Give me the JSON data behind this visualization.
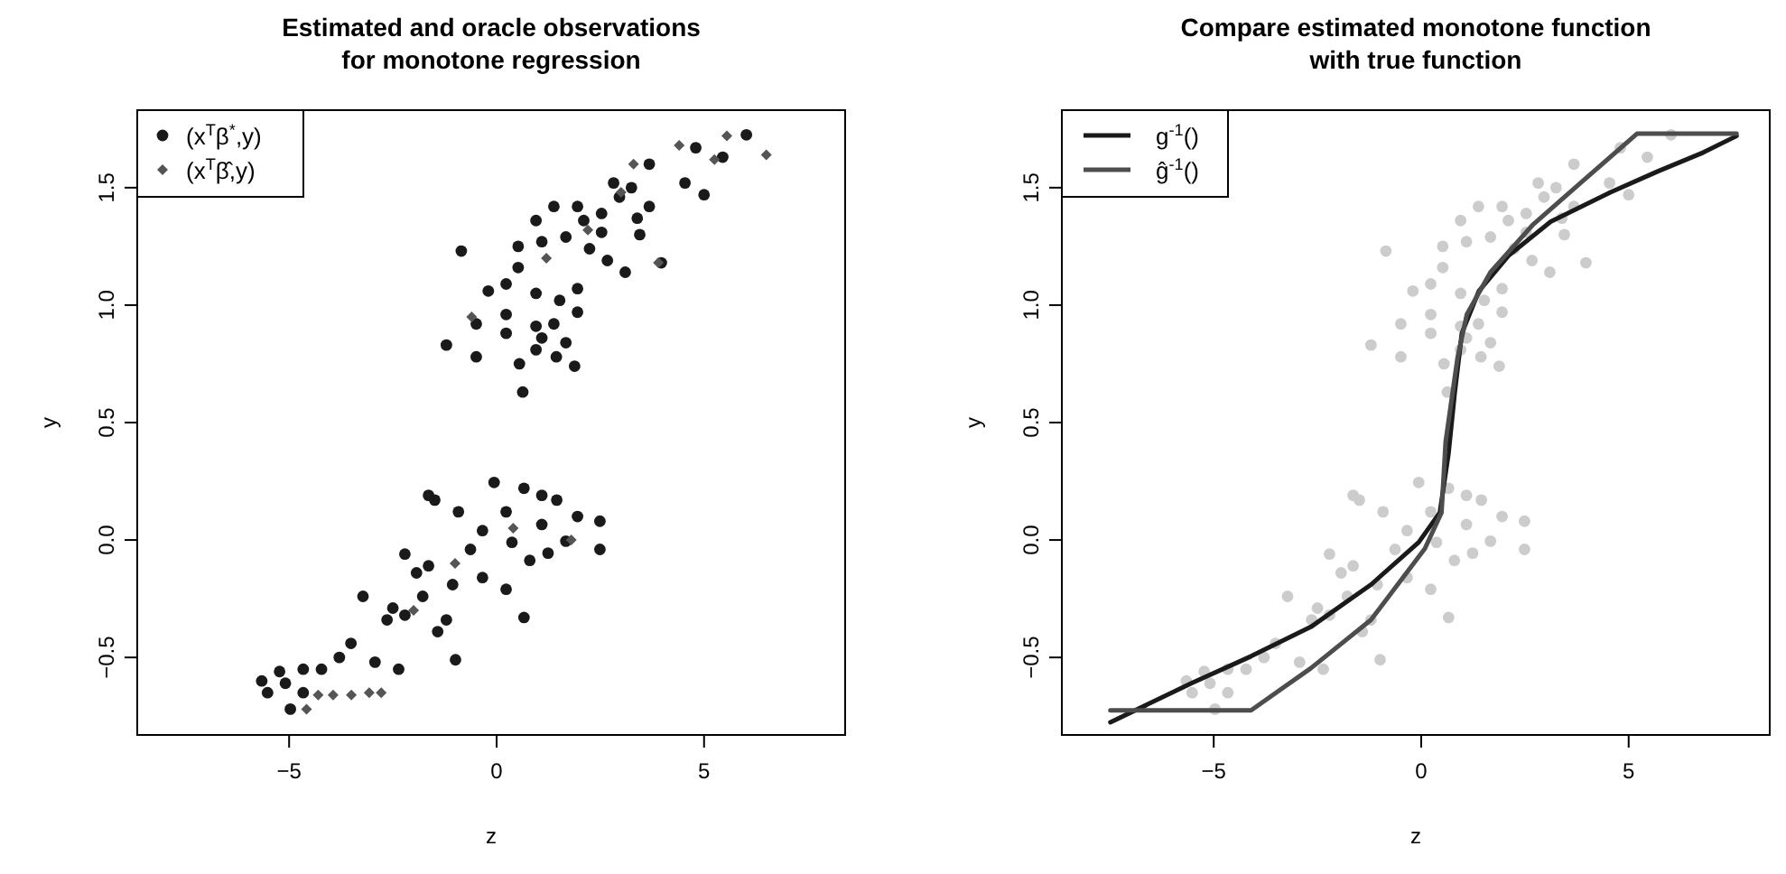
{
  "chart_data": [
    {
      "type": "scatter",
      "title": "Estimated and oracle observations\nfor monotone regression",
      "xlabel": "z",
      "ylabel": "y",
      "xlim": [
        -8.66,
        8.4
      ],
      "ylim": [
        -0.83,
        1.83
      ],
      "xticks": [
        {
          "value": -5,
          "label": "−5"
        },
        {
          "value": 0,
          "label": "0"
        },
        {
          "value": 5,
          "label": "5"
        }
      ],
      "yticks": [
        {
          "value": -0.5,
          "label": "−0.5"
        },
        {
          "value": 0,
          "label": "0.0"
        },
        {
          "value": 0.5,
          "label": "0.5"
        },
        {
          "value": 1,
          "label": "1.0"
        },
        {
          "value": 1.5,
          "label": "1.5"
        }
      ],
      "legend": "top left",
      "grid": false,
      "series": [
        {
          "name": "(x$^{T}$β$^{*}$,y)",
          "color": "#1a1a1a",
          "marker": "circle",
          "x": [
            6.02,
            4.8,
            5.45,
            3.68,
            4.54,
            5.0,
            2.82,
            3.25,
            3.68,
            3.39,
            2.53,
            2.1,
            1.95,
            1.38,
            0.95,
            0.52,
            1.09,
            1.67,
            2.24,
            2.67,
            3.1,
            3.45,
            3.97,
            -0.85,
            -0.2,
            0.52,
            0.95,
            1.52,
            1.95,
            0.23,
            -0.49,
            -1.21,
            -0.49,
            0.23,
            0.95,
            1.38,
            1.09,
            1.67,
            0.95,
            1.44,
            0.55,
            1.88,
            0.63,
            0.23,
            1.95,
            2.96,
            2.53,
            -0.06,
            0.66,
            1.09,
            1.45,
            1.95,
            2.49,
            2.49,
            1.67,
            1.24,
            0.8,
            0.23,
            -0.34,
            -0.92,
            -1.49,
            -1.64,
            -2.21,
            -1.64,
            -1.06,
            -0.34,
            0.23,
            0.66,
            -0.99,
            -1.78,
            -2.21,
            -2.64,
            -3.22,
            -3.79,
            -3.51,
            -2.93,
            -2.36,
            -4.22,
            -4.66,
            -5.23,
            -5.66,
            -5.52,
            -4.97,
            -5.09,
            -4.66,
            -1.42,
            -0.63,
            0.37,
            1.09,
            -1.21,
            -1.93,
            -2.5
          ],
          "values": [
            1.725,
            1.67,
            1.63,
            1.6,
            1.52,
            1.47,
            1.52,
            1.5,
            1.42,
            1.37,
            1.39,
            1.36,
            1.42,
            1.42,
            1.36,
            1.25,
            1.27,
            1.29,
            1.24,
            1.19,
            1.14,
            1.3,
            1.18,
            1.23,
            1.06,
            1.16,
            1.05,
            1.02,
            0.97,
            0.96,
            0.92,
            0.83,
            0.78,
            0.88,
            0.91,
            0.92,
            0.86,
            0.84,
            0.81,
            0.78,
            0.75,
            0.74,
            0.63,
            1.09,
            1.07,
            1.46,
            1.31,
            0.245,
            0.22,
            0.19,
            0.17,
            0.1,
            0.08,
            -0.04,
            -0.005,
            -0.056,
            -0.087,
            0.12,
            0.04,
            0.12,
            0.17,
            0.19,
            -0.06,
            -0.11,
            -0.19,
            -0.16,
            -0.21,
            -0.33,
            -0.51,
            -0.24,
            -0.32,
            -0.34,
            -0.24,
            -0.5,
            -0.44,
            -0.52,
            -0.55,
            -0.55,
            -0.55,
            -0.56,
            -0.6,
            -0.65,
            -0.72,
            -0.61,
            -0.65,
            -0.39,
            -0.04,
            -0.01,
            0.066,
            -0.34,
            -0.14,
            -0.29
          ]
        },
        {
          "name": "(x$^{T}$β̂,y)",
          "color": "#555555",
          "marker": "diamond",
          "x": [
            4.4,
            5.55,
            6.5,
            3.3,
            3.9,
            5.25,
            -3.07,
            -2.78,
            -3.94,
            -4.58,
            -4.3,
            -3.5,
            -2.0,
            -1.0,
            0.4,
            1.2,
            2.2,
            3.0,
            -0.6,
            1.8
          ],
          "values": [
            1.68,
            1.72,
            1.64,
            1.6,
            1.18,
            1.62,
            -0.65,
            -0.65,
            -0.66,
            -0.72,
            -0.66,
            -0.66,
            -0.3,
            -0.1,
            0.05,
            1.2,
            1.32,
            1.48,
            0.95,
            0.0
          ]
        }
      ]
    },
    {
      "type": "scatter",
      "title": "Compare estimated monotone function\nwith true function",
      "xlabel": "z",
      "ylabel": "y",
      "xlim": [
        -8.66,
        8.4
      ],
      "ylim": [
        -0.83,
        1.83
      ],
      "xticks": [
        {
          "value": -5,
          "label": "−5"
        },
        {
          "value": 0,
          "label": "0"
        },
        {
          "value": 5,
          "label": "5"
        }
      ],
      "yticks": [
        {
          "value": -0.5,
          "label": "−0.5"
        },
        {
          "value": 0,
          "label": "0.0"
        },
        {
          "value": 0.5,
          "label": "0.5"
        },
        {
          "value": 1,
          "label": "1.0"
        },
        {
          "value": 1.5,
          "label": "1.5"
        }
      ],
      "legend": "top left",
      "grid": false,
      "series": [
        {
          "color": "#cccccc",
          "marker": "circle",
          "x": [
            6.02,
            4.8,
            5.45,
            3.68,
            4.54,
            5.0,
            2.82,
            3.25,
            3.68,
            3.39,
            2.53,
            2.1,
            1.95,
            1.38,
            0.95,
            0.52,
            1.09,
            1.67,
            2.24,
            2.67,
            3.1,
            3.45,
            3.97,
            -0.85,
            -0.2,
            0.52,
            0.95,
            1.52,
            1.95,
            0.23,
            -0.49,
            -1.21,
            -0.49,
            0.23,
            0.95,
            1.38,
            1.09,
            1.67,
            0.95,
            1.44,
            0.55,
            1.88,
            0.63,
            0.23,
            1.95,
            2.96,
            2.53,
            -0.06,
            0.66,
            1.09,
            1.45,
            1.95,
            2.49,
            2.49,
            1.67,
            1.24,
            0.8,
            0.23,
            -0.34,
            -0.92,
            -1.49,
            -1.64,
            -2.21,
            -1.64,
            -1.06,
            -0.34,
            0.23,
            0.66,
            -0.99,
            -1.78,
            -2.21,
            -2.64,
            -3.22,
            -3.79,
            -3.51,
            -2.93,
            -2.36,
            -4.22,
            -4.66,
            -5.23,
            -5.66,
            -5.52,
            -4.97,
            -5.09,
            -4.66,
            -1.42,
            -0.63,
            0.37,
            1.09,
            -1.21,
            -1.93,
            -2.5
          ],
          "values": [
            1.725,
            1.67,
            1.63,
            1.6,
            1.52,
            1.47,
            1.52,
            1.5,
            1.42,
            1.37,
            1.39,
            1.36,
            1.42,
            1.42,
            1.36,
            1.25,
            1.27,
            1.29,
            1.24,
            1.19,
            1.14,
            1.3,
            1.18,
            1.23,
            1.06,
            1.16,
            1.05,
            1.02,
            0.97,
            0.96,
            0.92,
            0.83,
            0.78,
            0.88,
            0.91,
            0.92,
            0.86,
            0.84,
            0.81,
            0.78,
            0.75,
            0.74,
            0.63,
            1.09,
            1.07,
            1.46,
            1.31,
            0.245,
            0.22,
            0.19,
            0.17,
            0.1,
            0.08,
            -0.04,
            -0.005,
            -0.056,
            -0.087,
            0.12,
            0.04,
            0.12,
            0.17,
            0.19,
            -0.06,
            -0.11,
            -0.19,
            -0.16,
            -0.21,
            -0.33,
            -0.51,
            -0.24,
            -0.32,
            -0.34,
            -0.24,
            -0.5,
            -0.44,
            -0.52,
            -0.55,
            -0.55,
            -0.55,
            -0.56,
            -0.6,
            -0.65,
            -0.72,
            -0.61,
            -0.65,
            -0.39,
            -0.04,
            -0.01,
            0.066,
            -0.34,
            -0.14,
            -0.29
          ]
        },
        {
          "type": "line",
          "name": "g$^{-1}$()",
          "color": "#1a1a1a",
          "marker": "none",
          "x": [
            -7.49,
            -5.54,
            -4.1,
            -2.66,
            -1.21,
            -0.06,
            0.45,
            0.66,
            0.81,
            0.98,
            1.39,
            2.1,
            3.12,
            4.56,
            5.71,
            6.8,
            7.6
          ],
          "values": [
            -0.776,
            -0.61,
            -0.495,
            -0.37,
            -0.19,
            -0.01,
            0.117,
            0.37,
            0.63,
            0.88,
            1.06,
            1.21,
            1.355,
            1.48,
            1.57,
            1.65,
            1.72
          ]
        },
        {
          "type": "line",
          "name": "ĝ$^{-1}$()",
          "color": "#4d4d4d",
          "marker": "none",
          "x": [
            -7.49,
            -4.1,
            -2.66,
            -1.21,
            0.09,
            0.49,
            0.59,
            0.88,
            1.1,
            1.67,
            2.68,
            3.84,
            5.2,
            7.6
          ],
          "values": [
            -0.725,
            -0.725,
            -0.546,
            -0.34,
            -0.036,
            0.117,
            0.42,
            0.78,
            0.96,
            1.14,
            1.34,
            1.52,
            1.73,
            1.73
          ]
        }
      ]
    }
  ]
}
